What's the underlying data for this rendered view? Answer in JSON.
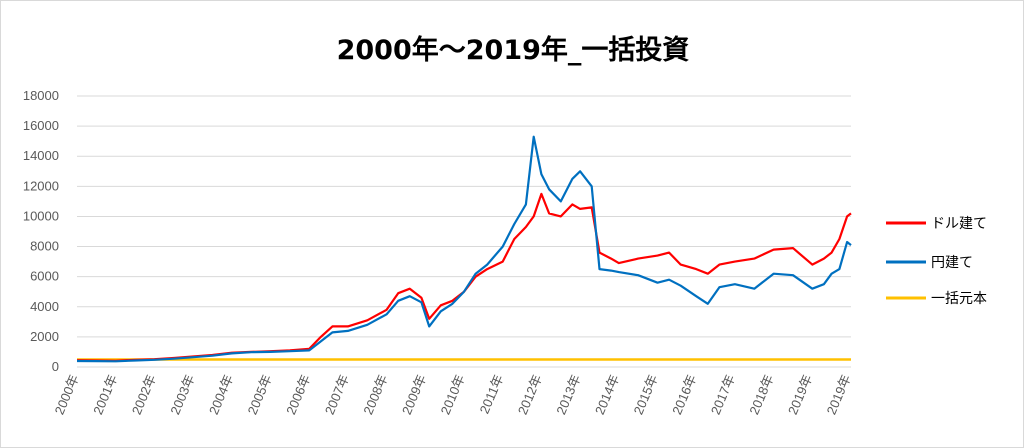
{
  "chart_data": {
    "type": "line",
    "title": "2000年～2019年_一括投資",
    "xlabel": "",
    "ylabel": "",
    "ylim": [
      0,
      18000
    ],
    "yticks": [
      "0",
      "2000",
      "4000",
      "6000",
      "8000",
      "10000",
      "12000",
      "14000",
      "16000",
      "18000"
    ],
    "xlim": [
      2000.0,
      2020.0
    ],
    "xticks": [
      "2000年",
      "2001年",
      "2002年",
      "2003年",
      "2004年",
      "2005年",
      "2006年",
      "2007年",
      "2008年",
      "2009年",
      "2010年",
      "2011年",
      "2012年",
      "2013年",
      "2014年",
      "2015年",
      "2016年",
      "2017年",
      "2018年",
      "2019年",
      "2019年"
    ],
    "grid": "horizontal",
    "legend": "right",
    "series": [
      {
        "name": "ドル建て",
        "color": "#ff0000",
        "x": [
          2000.0,
          2000.5,
          2001.0,
          2001.5,
          2002.0,
          2002.5,
          2003.0,
          2003.5,
          2004.0,
          2004.5,
          2005.0,
          2005.5,
          2006.0,
          2006.3,
          2006.6,
          2007.0,
          2007.5,
          2008.0,
          2008.3,
          2008.6,
          2008.9,
          2009.1,
          2009.4,
          2009.7,
          2010.0,
          2010.3,
          2010.6,
          2011.0,
          2011.3,
          2011.6,
          2011.8,
          2012.0,
          2012.2,
          2012.5,
          2012.8,
          2013.0,
          2013.3,
          2013.5,
          2013.8,
          2014.0,
          2014.5,
          2015.0,
          2015.3,
          2015.6,
          2016.0,
          2016.3,
          2016.6,
          2017.0,
          2017.5,
          2018.0,
          2018.5,
          2019.0,
          2019.3,
          2019.5,
          2019.7,
          2019.9,
          2020.0
        ],
        "values": [
          450,
          430,
          420,
          480,
          520,
          600,
          700,
          800,
          950,
          1000,
          1050,
          1100,
          1200,
          2000,
          2700,
          2700,
          3100,
          3800,
          4900,
          5200,
          4600,
          3200,
          4100,
          4400,
          5000,
          6000,
          6500,
          7000,
          8500,
          9300,
          10000,
          11500,
          10200,
          10000,
          10800,
          10500,
          10600,
          7600,
          7200,
          6900,
          7200,
          7400,
          7600,
          6800,
          6500,
          6200,
          6800,
          7000,
          7200,
          7800,
          7900,
          6800,
          7200,
          7600,
          8500,
          10000,
          10200
        ]
      },
      {
        "name": "円建て",
        "color": "#0070c0",
        "x": [
          2000.0,
          2000.5,
          2001.0,
          2001.5,
          2002.0,
          2002.5,
          2003.0,
          2003.5,
          2004.0,
          2004.5,
          2005.0,
          2005.5,
          2006.0,
          2006.3,
          2006.6,
          2007.0,
          2007.5,
          2008.0,
          2008.3,
          2008.6,
          2008.9,
          2009.1,
          2009.4,
          2009.7,
          2010.0,
          2010.3,
          2010.6,
          2011.0,
          2011.3,
          2011.6,
          2011.8,
          2012.0,
          2012.2,
          2012.5,
          2012.8,
          2013.0,
          2013.3,
          2013.5,
          2013.8,
          2014.0,
          2014.5,
          2015.0,
          2015.3,
          2015.6,
          2016.0,
          2016.3,
          2016.6,
          2017.0,
          2017.5,
          2018.0,
          2018.5,
          2019.0,
          2019.3,
          2019.5,
          2019.7,
          2019.9,
          2020.0
        ],
        "values": [
          400,
          390,
          380,
          430,
          480,
          550,
          650,
          750,
          900,
          980,
          1000,
          1050,
          1100,
          1700,
          2300,
          2400,
          2800,
          3500,
          4400,
          4700,
          4300,
          2700,
          3700,
          4200,
          5000,
          6200,
          6800,
          8000,
          9500,
          10800,
          15300,
          12800,
          11800,
          11000,
          12500,
          13000,
          12000,
          6500,
          6400,
          6300,
          6100,
          5600,
          5800,
          5400,
          4700,
          4200,
          5300,
          5500,
          5200,
          6200,
          6100,
          5200,
          5500,
          6200,
          6500,
          8300,
          8100
        ]
      },
      {
        "name": "一括元本",
        "color": "#ffc000",
        "x": [
          2000.0,
          2020.0
        ],
        "values": [
          500,
          500
        ]
      }
    ]
  }
}
